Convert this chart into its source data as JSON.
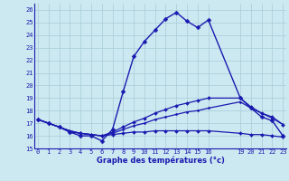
{
  "title": "Graphe des températures (°c)",
  "bg_color": "#cce8f0",
  "line_color": "#1a1ab0",
  "grid_color": "#a8ccd8",
  "ylim": [
    15,
    26.5
  ],
  "xlim": [
    -0.3,
    23.3
  ],
  "yticks": [
    15,
    16,
    17,
    18,
    19,
    20,
    21,
    22,
    23,
    24,
    25,
    26
  ],
  "xticks": [
    0,
    1,
    2,
    3,
    4,
    5,
    6,
    7,
    8,
    9,
    10,
    11,
    12,
    13,
    14,
    15,
    16,
    19,
    20,
    21,
    22,
    23
  ],
  "xtick_labels": [
    "0",
    "1",
    "2",
    "3",
    "4",
    "5",
    "6",
    "7",
    "8",
    "9",
    "10",
    "11",
    "12",
    "13",
    "14",
    "15",
    "16",
    "19",
    "20",
    "21",
    "22",
    "23"
  ],
  "series": [
    {
      "x": [
        0,
        1,
        2,
        3,
        4,
        5,
        6,
        7,
        8,
        9,
        10,
        11,
        12,
        13,
        14,
        15,
        16,
        19,
        20,
        21,
        22,
        23
      ],
      "y": [
        17.3,
        17.0,
        16.7,
        16.3,
        16.0,
        16.0,
        15.6,
        16.5,
        19.5,
        22.3,
        23.5,
        24.4,
        25.3,
        25.8,
        25.1,
        24.6,
        25.2,
        19.0,
        18.2,
        17.5,
        17.2,
        16.0
      ],
      "lw": 1.0,
      "ms": 2.5
    },
    {
      "x": [
        0,
        1,
        2,
        3,
        4,
        5,
        6,
        7,
        8,
        9,
        10,
        11,
        12,
        13,
        14,
        15,
        16,
        19,
        20,
        21,
        22,
        23
      ],
      "y": [
        17.3,
        17.0,
        16.7,
        16.3,
        16.2,
        16.1,
        16.0,
        16.3,
        16.7,
        17.1,
        17.4,
        17.8,
        18.1,
        18.4,
        18.6,
        18.8,
        19.0,
        19.0,
        18.3,
        17.8,
        17.5,
        16.9
      ],
      "lw": 0.9,
      "ms": 2.0
    },
    {
      "x": [
        0,
        1,
        2,
        3,
        4,
        5,
        6,
        7,
        8,
        9,
        10,
        11,
        12,
        13,
        14,
        15,
        16,
        19,
        20,
        21,
        22,
        23
      ],
      "y": [
        17.3,
        17.0,
        16.7,
        16.4,
        16.2,
        16.1,
        16.0,
        16.1,
        16.2,
        16.3,
        16.3,
        16.4,
        16.4,
        16.4,
        16.4,
        16.4,
        16.4,
        16.2,
        16.1,
        16.1,
        16.0,
        15.9
      ],
      "lw": 0.9,
      "ms": 2.0
    },
    {
      "x": [
        0,
        1,
        2,
        3,
        4,
        5,
        6,
        7,
        8,
        9,
        10,
        11,
        12,
        13,
        14,
        15,
        16,
        19,
        20,
        21,
        22,
        23
      ],
      "y": [
        17.3,
        17.0,
        16.7,
        16.4,
        16.2,
        16.1,
        16.0,
        16.2,
        16.5,
        16.8,
        17.0,
        17.3,
        17.5,
        17.7,
        17.9,
        18.0,
        18.2,
        18.7,
        18.2,
        17.8,
        17.4,
        16.9
      ],
      "lw": 0.9,
      "ms": 1.5
    }
  ]
}
